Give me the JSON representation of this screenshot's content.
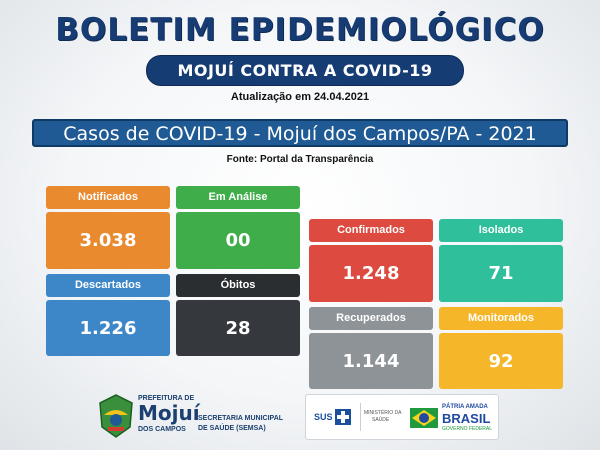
{
  "header": {
    "title": "BOLETIM EPIDEMIOLÓGICO",
    "subtitle": "MOJUÍ CONTRA A COVID-19",
    "update": "Atualização em 24.04.2021"
  },
  "banner": {
    "text": "Casos de COVID-19  -  Mojuí dos Campos/PA - 2021"
  },
  "source": {
    "text": "Fonte: Portal da Transparência"
  },
  "cards": {
    "notificados": {
      "label": "Notificados",
      "value": "3.038"
    },
    "em_analise": {
      "label": "Em Análise",
      "value": "00"
    },
    "descartados": {
      "label": "Descartados",
      "value": "1.226"
    },
    "obitos": {
      "label": "Óbitos",
      "value": "28"
    },
    "confirmados": {
      "label": "Confirmados",
      "value": "1.248"
    },
    "isolados": {
      "label": "Isolados",
      "value": "71"
    },
    "recuperados": {
      "label": "Recuperados",
      "value": "1.144"
    },
    "monitorados": {
      "label": "Monitorados",
      "value": "92"
    }
  },
  "footer": {
    "prefeitura_line1": "PREFEITURA DE",
    "prefeitura_name": "Mojuí",
    "prefeitura_line2": "DOS CAMPOS",
    "secretaria_line1": "SECRETARIA MUNICIPAL",
    "secretaria_line2": "DE SAÚDE (SEMSA)",
    "sus": "SUS",
    "ministerio_line1": "MINISTÉRIO DA",
    "ministerio_line2": "SAÚDE",
    "patria": "PÁTRIA AMADA",
    "brasil": "BRASIL",
    "governo": "GOVERNO FEDERAL"
  },
  "colors": {
    "navy": "#163c74",
    "orange": "#e98a2f",
    "green": "#3fae4a",
    "blue": "#3d87c8",
    "dark": "#35393d",
    "red": "#dd4a40",
    "teal": "#2fbf9a",
    "gray": "#8e9397",
    "yellow": "#f5b62a"
  }
}
